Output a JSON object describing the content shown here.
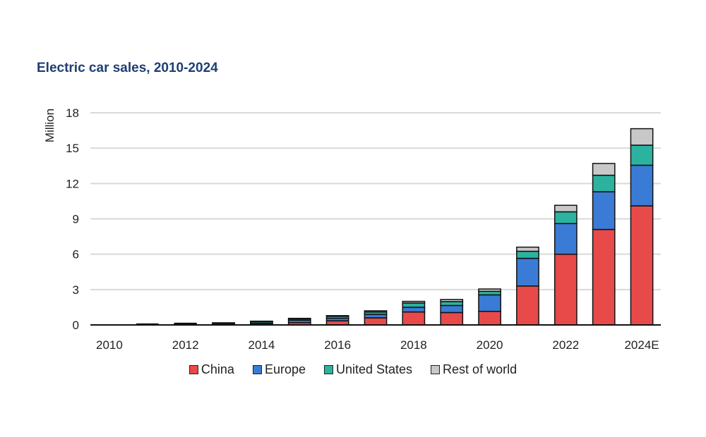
{
  "chart_data": {
    "type": "bar",
    "stacked": true,
    "title": "Electric car sales, 2010-2024",
    "xlabel": "",
    "ylabel": "Million",
    "ylim": [
      0,
      18
    ],
    "yticks": [
      0,
      3,
      6,
      9,
      12,
      15,
      18
    ],
    "grid": true,
    "legend_position": "bottom",
    "categories": [
      "2010",
      "2011",
      "2012",
      "2013",
      "2014",
      "2015",
      "2016",
      "2017",
      "2018",
      "2019",
      "2020",
      "2021",
      "2022",
      "2023",
      "2024E"
    ],
    "xtick_labels": [
      "2010",
      "2012",
      "2014",
      "2016",
      "2018",
      "2020",
      "2022",
      "2024E"
    ],
    "series": [
      {
        "name": "China",
        "color": "#e84a4a",
        "values": [
          0.0,
          0.01,
          0.02,
          0.02,
          0.07,
          0.2,
          0.35,
          0.6,
          1.1,
          1.05,
          1.15,
          3.3,
          6.0,
          8.1,
          10.1
        ]
      },
      {
        "name": "Europe",
        "color": "#3a7bd5",
        "values": [
          0.0,
          0.01,
          0.02,
          0.05,
          0.1,
          0.2,
          0.22,
          0.3,
          0.4,
          0.6,
          1.4,
          2.35,
          2.6,
          3.2,
          3.45
        ]
      },
      {
        "name": "United States",
        "color": "#2bb3a0",
        "values": [
          0.0,
          0.02,
          0.05,
          0.1,
          0.12,
          0.11,
          0.16,
          0.2,
          0.36,
          0.33,
          0.3,
          0.6,
          1.0,
          1.4,
          1.7
        ]
      },
      {
        "name": "Rest of world",
        "color": "#c8c8c8",
        "values": [
          0.0,
          0.0,
          0.01,
          0.01,
          0.03,
          0.05,
          0.06,
          0.1,
          0.14,
          0.18,
          0.2,
          0.35,
          0.55,
          1.0,
          1.4
        ]
      }
    ]
  }
}
